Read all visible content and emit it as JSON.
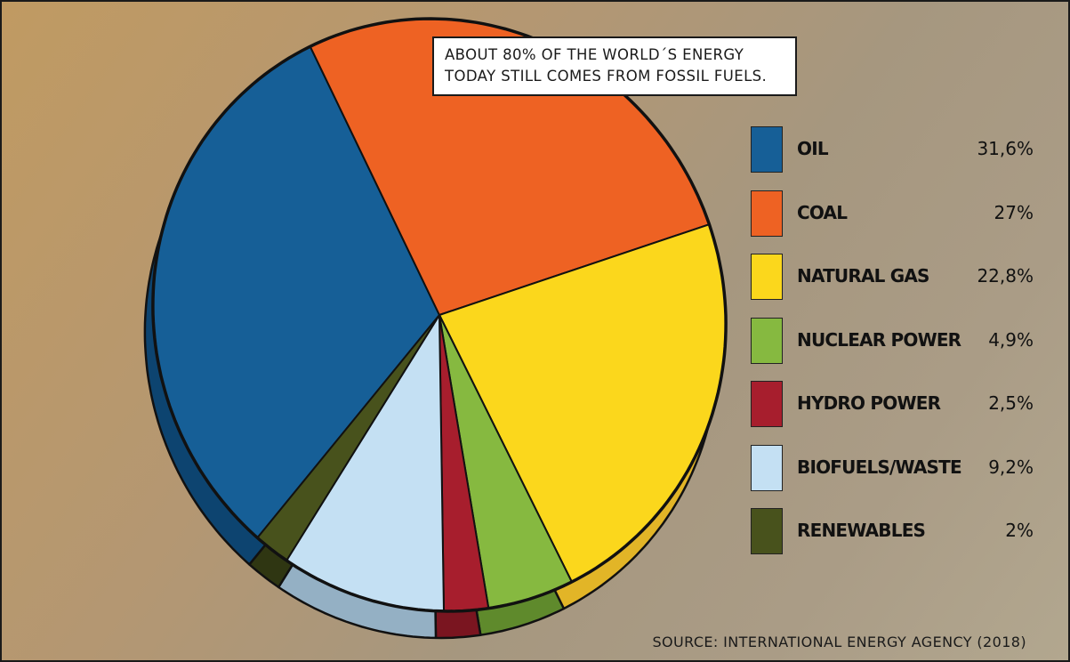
{
  "callout": {
    "line1": "ABOUT 80% OF THE WORLD´S ENERGY",
    "line2": "TODAY STILL COMES FROM FOSSIL FUELS."
  },
  "source": "SOURCE: INTERNATIONAL ENERGY AGENCY (2018)",
  "legend": [
    {
      "label": "OIL",
      "value_text": "31,6%"
    },
    {
      "label": "COAL",
      "value_text": "27%"
    },
    {
      "label": "NATURAL GAS",
      "value_text": "22,8%"
    },
    {
      "label": "NUCLEAR POWER",
      "value_text": "4,9%"
    },
    {
      "label": "HYDRO POWER",
      "value_text": "2,5%"
    },
    {
      "label": "BIOFUELS/WASTE",
      "value_text": "9,2%"
    },
    {
      "label": "RENEWABLES",
      "value_text": "2%"
    }
  ],
  "chart_data": {
    "type": "pie",
    "title": "",
    "style": "3d-tilted",
    "categories": [
      "OIL",
      "COAL",
      "NATURAL GAS",
      "NUCLEAR POWER",
      "HYDRO POWER",
      "BIOFUELS/WASTE",
      "RENEWABLES"
    ],
    "values": [
      31.6,
      27,
      22.8,
      4.9,
      2.5,
      9.2,
      2
    ],
    "colors": [
      "#165f97",
      "#ee6223",
      "#fbd71c",
      "#86b940",
      "#a71e2d",
      "#c4e0f3",
      "#48521c"
    ],
    "side_colors": [
      "#0d4470",
      "#d23e22",
      "#e2b527",
      "#5f8a2c",
      "#7a1520",
      "#94b0c4",
      "#2f3612"
    ],
    "legend_position": "right",
    "slice_order": "clockwise from top"
  }
}
